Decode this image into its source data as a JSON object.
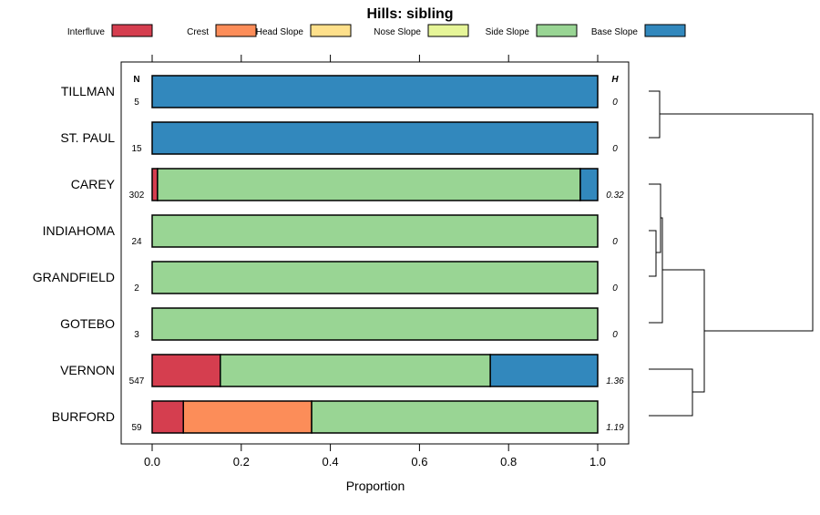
{
  "chart_data": {
    "type": "bar",
    "orientation": "horizontal-stacked",
    "title": "Hills: sibling",
    "xlabel": "Proportion",
    "xlim": [
      0,
      1
    ],
    "xticks": [
      "0.0",
      "0.2",
      "0.4",
      "0.6",
      "0.8",
      "1.0"
    ],
    "legend_position": "top",
    "n_header": "N",
    "h_header": "H",
    "legend": [
      {
        "name": "Interfluve",
        "color": "#D53E4F"
      },
      {
        "name": "Crest",
        "color": "#FC8D59"
      },
      {
        "name": "Head Slope",
        "color": "#FEE08B"
      },
      {
        "name": "Nose Slope",
        "color": "#E6F598"
      },
      {
        "name": "Side Slope",
        "color": "#99D594"
      },
      {
        "name": "Base Slope",
        "color": "#3288BD"
      }
    ],
    "categories": [
      "TILLMAN",
      "ST. PAUL",
      "CAREY",
      "INDIAHOMA",
      "GRANDFIELD",
      "GOTEBO",
      "VERNON",
      "BURFORD"
    ],
    "n": [
      "5",
      "15",
      "302",
      "24",
      "2",
      "3",
      "547",
      "59"
    ],
    "h": [
      "0",
      "0",
      "0.32",
      "0",
      "0",
      "0",
      "1.36",
      "1.19"
    ],
    "series": [
      {
        "name": "Interfluve",
        "values": [
          0,
          0,
          0.012,
          0,
          0,
          0,
          0.153,
          0.07
        ]
      },
      {
        "name": "Crest",
        "values": [
          0,
          0,
          0,
          0,
          0,
          0,
          0,
          0.288
        ]
      },
      {
        "name": "Head Slope",
        "values": [
          0,
          0,
          0,
          0,
          0,
          0,
          0,
          0
        ]
      },
      {
        "name": "Nose Slope",
        "values": [
          0,
          0,
          0,
          0,
          0,
          0,
          0,
          0
        ]
      },
      {
        "name": "Side Slope",
        "values": [
          0,
          0,
          0.949,
          1,
          1,
          1,
          0.606,
          0.642
        ]
      },
      {
        "name": "Base Slope",
        "values": [
          1,
          1,
          0.039,
          0,
          0,
          0,
          0.241,
          0
        ]
      }
    ]
  }
}
